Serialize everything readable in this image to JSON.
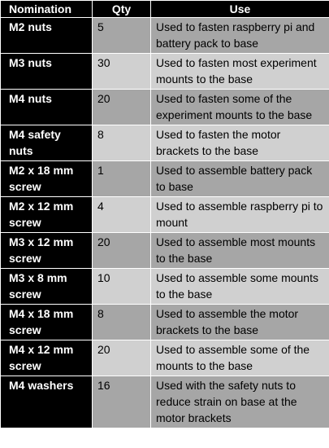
{
  "table": {
    "headers": {
      "nomination": "Nomination",
      "qty": "Qty",
      "use": "Use"
    },
    "rows": [
      {
        "nomination": "M2 nuts",
        "qty": "5",
        "use": "Used to fasten raspberry pi and battery pack to base"
      },
      {
        "nomination": "M3 nuts",
        "qty": "30",
        "use": "Used to fasten most experiment mounts to the base"
      },
      {
        "nomination": "M4 nuts",
        "qty": "20",
        "use": "Used to fasten some of the experiment mounts to the base"
      },
      {
        "nomination": "M4 safety nuts",
        "qty": "8",
        "use": "Used to fasten the motor brackets to the base"
      },
      {
        "nomination": "M2 x 18 mm screw",
        "qty": "1",
        "use": "Used to assemble battery pack to base"
      },
      {
        "nomination": "M2 x 12 mm screw",
        "qty": "4",
        "use": "Used to assemble raspberry pi to mount"
      },
      {
        "nomination": "M3 x 12 mm screw",
        "qty": "20",
        "use": "Used to assemble most mounts to the base"
      },
      {
        "nomination": "M3 x 8 mm screw",
        "qty": "10",
        "use": "Used to assemble some mounts to the base"
      },
      {
        "nomination": "M4 x 18 mm screw",
        "qty": "8",
        "use": "Used to assemble the motor brackets to the base"
      },
      {
        "nomination": "M4 x 12 mm screw",
        "qty": "20",
        "use": "Used to assemble some of the mounts to the base"
      },
      {
        "nomination": "M4 washers",
        "qty": "16",
        "use": "Used with the safety nuts to reduce strain on base at the motor brackets"
      }
    ]
  }
}
